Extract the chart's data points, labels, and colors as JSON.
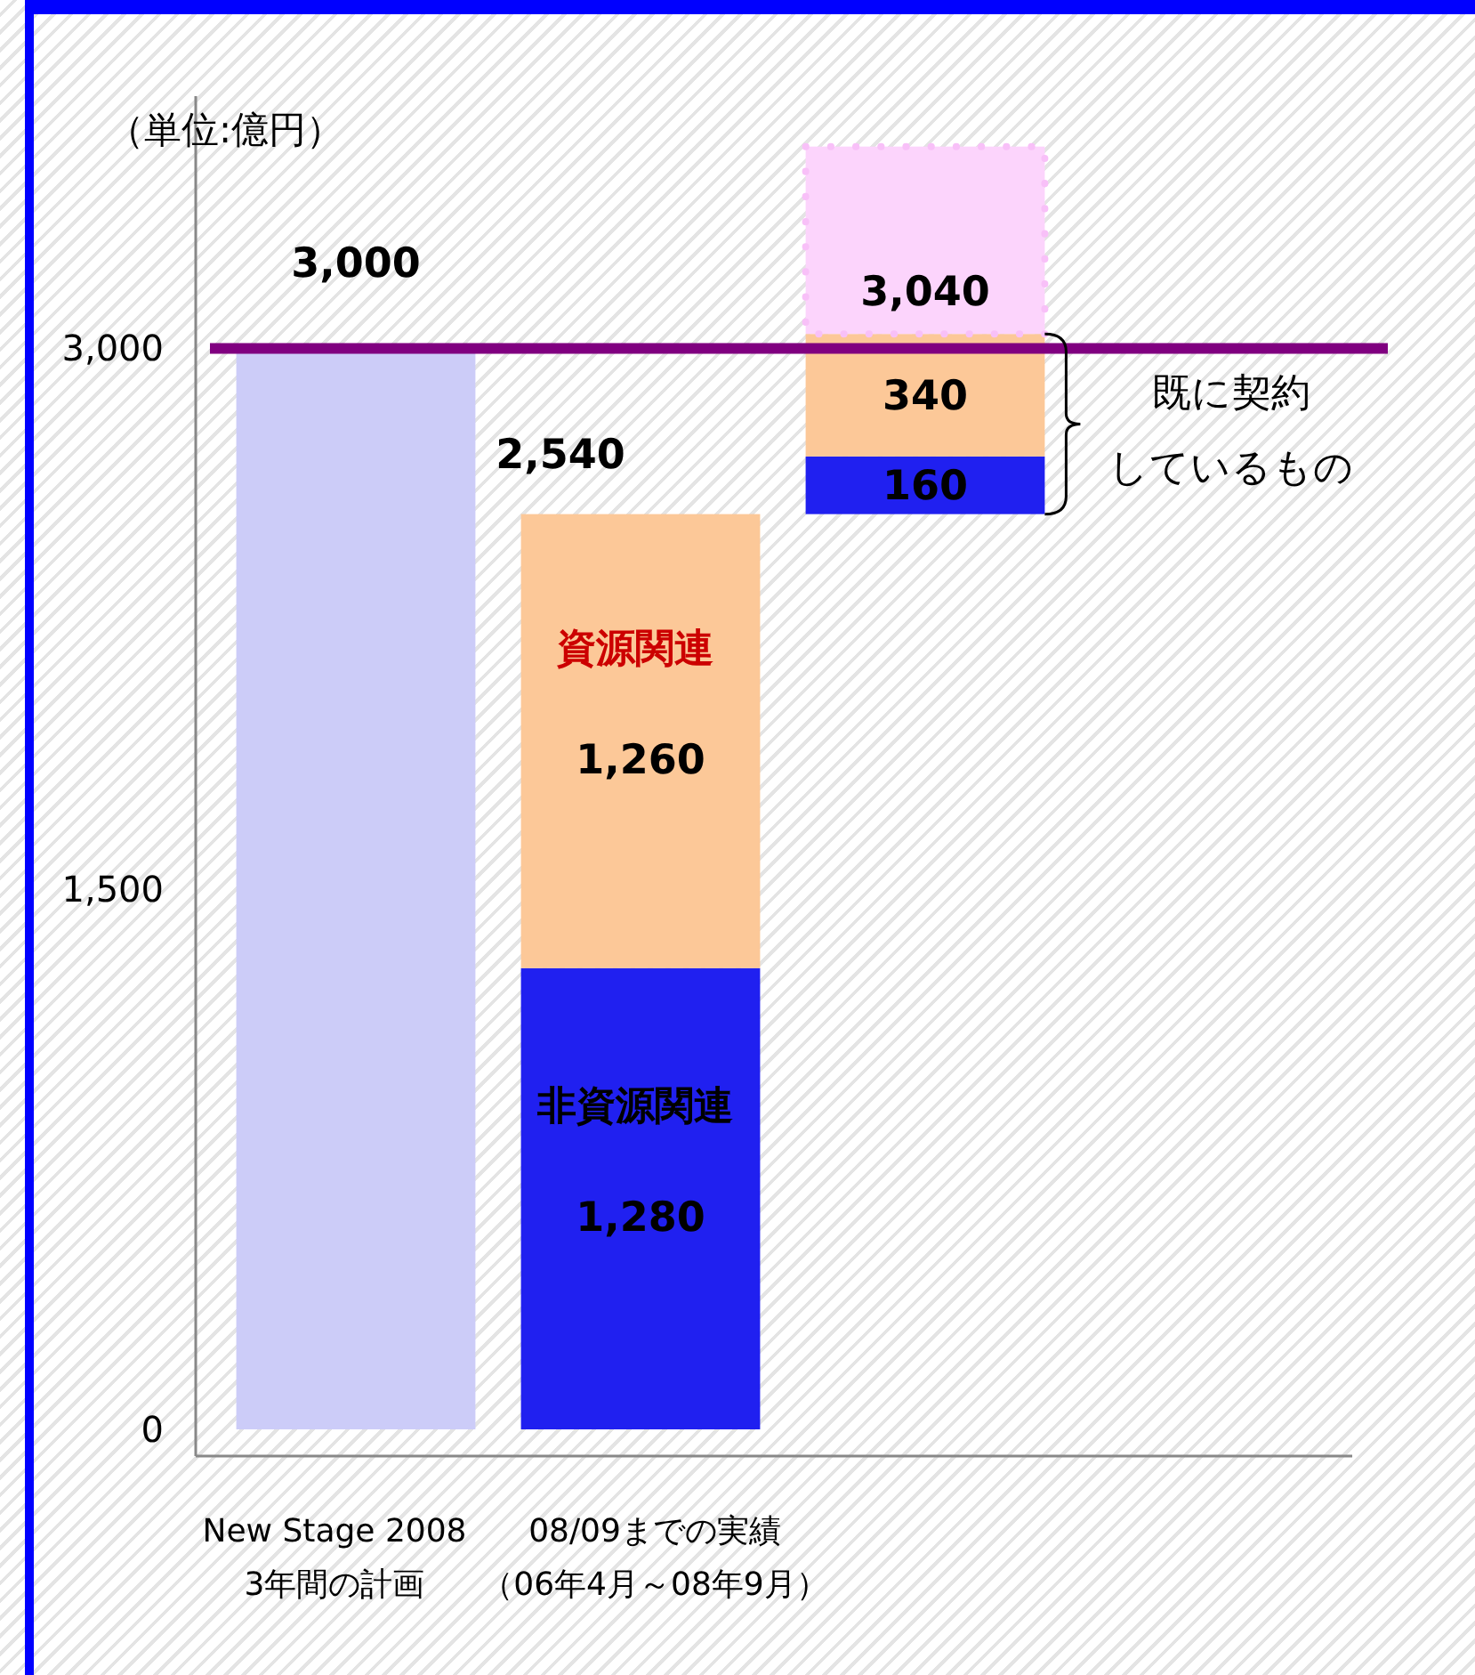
{
  "chart_data": {
    "type": "bar",
    "categories": [
      "New Stage 2008\n3年間の計画",
      "08/09までの実績（06年4月～08年9月）",
      null
    ],
    "series": [
      {
        "color": "#ccccf8",
        "values": [
          3000,
          null,
          null
        ],
        "base": [
          0,
          null,
          null
        ],
        "value_labels": [
          "3,000",
          null,
          null
        ]
      },
      {
        "name": "非資源関連",
        "color": "#2020f0",
        "values": [
          null,
          1280,
          160
        ],
        "base": [
          null,
          0,
          2540
        ],
        "value_labels": [
          null,
          "1,280",
          "160"
        ]
      },
      {
        "name": "資源関連",
        "color": "#fcc898",
        "values": [
          null,
          1260,
          340
        ],
        "base": [
          null,
          1280,
          2700
        ],
        "value_labels": [
          null,
          "1,260",
          "340"
        ]
      },
      {
        "color": "#fcd4fc",
        "values": [
          null,
          null,
          520
        ],
        "base": [
          null,
          null,
          3040
        ],
        "value_labels": [
          null,
          null,
          null
        ],
        "line_style": "dotted"
      }
    ],
    "totals": [
      null,
      "2,540",
      null
    ],
    "ylim": [
      0,
      3700
    ],
    "yticks": [
      0,
      {
        "value": 1500,
        "label": "1,500"
      },
      {
        "value": 3000,
        "label": "3,000"
      }
    ],
    "ref_lines": [
      {
        "axis": "y",
        "value": 3000,
        "color": "#800080"
      }
    ],
    "annotations": [
      "（単位:億円）",
      "既に契約",
      "しているもの",
      {
        "text": "3,040",
        "y": 3040
      }
    ],
    "grid": false,
    "legend": false
  }
}
